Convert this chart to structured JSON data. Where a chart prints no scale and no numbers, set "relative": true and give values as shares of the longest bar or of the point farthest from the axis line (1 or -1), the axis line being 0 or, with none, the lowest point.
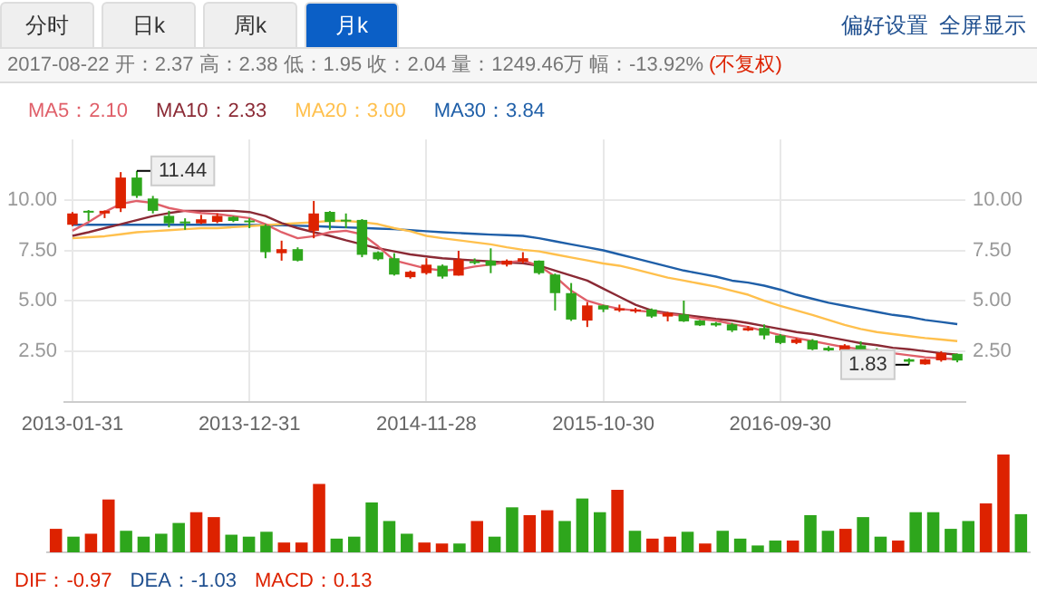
{
  "chart_data": [
    {
      "type": "candlestick",
      "subtitle": "2017-08-22 开：2.37 高：2.38 低：1.95 收：2.04 量：1249.46万 幅：-13.92%",
      "annotations": [
        "分时",
        "日k",
        "周k",
        "月k",
        "偏好设置",
        "全屏显示",
        "(不复权)",
        {
          "text": "11.44",
          "y": 11.44
        },
        {
          "text": "1.83",
          "y": 1.83
        }
      ],
      "categories": [
        "2013-01-31",
        null,
        null,
        null,
        null,
        null,
        null,
        null,
        null,
        null,
        null,
        "2013-12-31",
        null,
        null,
        null,
        null,
        null,
        null,
        null,
        null,
        null,
        null,
        "2014-11-28",
        null,
        null,
        null,
        null,
        null,
        null,
        null,
        null,
        null,
        null,
        "2015-10-30",
        null,
        null,
        null,
        null,
        null,
        null,
        null,
        null,
        null,
        null,
        "2016-09-30",
        null,
        null,
        null,
        null,
        null,
        null,
        null,
        null,
        null,
        null,
        null
      ],
      "ohlc": [
        [
          8.77,
          9.4,
          8.7,
          9.33
        ],
        [
          9.46,
          9.5,
          8.96,
          9.45
        ],
        [
          9.33,
          9.48,
          9.1,
          9.46
        ],
        [
          9.58,
          11.38,
          9.4,
          11.11
        ],
        [
          11.11,
          11.44,
          10.1,
          10.2
        ],
        [
          10.07,
          10.2,
          9.33,
          9.46
        ],
        [
          9.21,
          9.46,
          8.64,
          8.84
        ],
        [
          8.93,
          9.09,
          8.52,
          8.9
        ],
        [
          8.84,
          9.26,
          8.8,
          9.04
        ],
        [
          8.91,
          9.33,
          8.85,
          9.21
        ],
        [
          9.16,
          9.2,
          8.9,
          8.96
        ],
        [
          8.98,
          9.1,
          8.6,
          8.96
        ],
        [
          8.72,
          8.8,
          7.11,
          7.41
        ],
        [
          7.36,
          7.98,
          6.99,
          7.56
        ],
        [
          7.56,
          7.65,
          6.95,
          6.99
        ],
        [
          8.47,
          9.95,
          8.1,
          9.33
        ],
        [
          9.41,
          9.45,
          8.52,
          8.91
        ],
        [
          9.02,
          9.33,
          8.6,
          9.0
        ],
        [
          9.01,
          9.05,
          7.16,
          7.28
        ],
        [
          7.41,
          7.45,
          7.0,
          7.06
        ],
        [
          7.11,
          7.36,
          6.25,
          6.3
        ],
        [
          6.17,
          6.5,
          6.1,
          6.44
        ],
        [
          6.37,
          7.11,
          6.3,
          6.79
        ],
        [
          6.74,
          6.8,
          6.1,
          6.2
        ],
        [
          6.25,
          7.48,
          6.25,
          7.04
        ],
        [
          6.96,
          7.1,
          6.8,
          6.93
        ],
        [
          6.99,
          7.6,
          6.37,
          6.74
        ],
        [
          6.79,
          7.05,
          6.7,
          6.99
        ],
        [
          6.94,
          7.41,
          6.85,
          7.11
        ],
        [
          6.99,
          7.0,
          6.3,
          6.37
        ],
        [
          6.3,
          6.35,
          4.52,
          5.38
        ],
        [
          5.38,
          5.88,
          4.0,
          4.07
        ],
        [
          4.02,
          4.94,
          3.7,
          4.77
        ],
        [
          4.77,
          4.8,
          4.44,
          4.57
        ],
        [
          4.52,
          4.81,
          4.45,
          4.62
        ],
        [
          4.47,
          4.65,
          4.4,
          4.57
        ],
        [
          4.57,
          4.62,
          4.15,
          4.22
        ],
        [
          4.22,
          4.45,
          3.98,
          4.4
        ],
        [
          4.32,
          5.01,
          3.95,
          3.98
        ],
        [
          4.02,
          4.05,
          3.75,
          3.78
        ],
        [
          3.9,
          3.95,
          3.72,
          3.78
        ],
        [
          3.83,
          3.9,
          3.45,
          3.53
        ],
        [
          3.53,
          3.75,
          3.5,
          3.65
        ],
        [
          3.65,
          3.83,
          3.09,
          3.28
        ],
        [
          3.28,
          3.35,
          2.85,
          2.91
        ],
        [
          2.91,
          3.15,
          2.85,
          3.09
        ],
        [
          3.04,
          3.1,
          2.55,
          2.59
        ],
        [
          2.67,
          2.75,
          2.5,
          2.54
        ],
        [
          2.54,
          2.85,
          2.5,
          2.79
        ],
        [
          2.79,
          2.99,
          2.45,
          2.49
        ],
        [
          2.59,
          2.65,
          2.45,
          2.5
        ],
        null,
        [
          2.1,
          2.15,
          1.83,
          1.98
        ],
        [
          1.85,
          2.12,
          1.83,
          2.1
        ],
        [
          2.05,
          2.5,
          1.98,
          2.42
        ],
        [
          2.37,
          2.38,
          1.95,
          2.04
        ]
      ],
      "colors": [
        "#dd2200",
        "#2ea61c",
        "#dd2200",
        "#dd2200",
        "#2ea61c",
        "#2ea61c",
        "#2ea61c",
        "#2ea61c",
        "#dd2200",
        "#dd2200",
        "#2ea61c",
        "#2ea61c",
        "#2ea61c",
        "#dd2200",
        "#2ea61c",
        "#dd2200",
        "#2ea61c",
        "#2ea61c",
        "#2ea61c",
        "#2ea61c",
        "#2ea61c",
        "#dd2200",
        "#dd2200",
        "#2ea61c",
        "#dd2200",
        "#2ea61c",
        "#2ea61c",
        "#dd2200",
        "#dd2200",
        "#2ea61c",
        "#2ea61c",
        "#2ea61c",
        "#dd2200",
        "#2ea61c",
        "#dd2200",
        "#dd2200",
        "#2ea61c",
        "#dd2200",
        "#2ea61c",
        "#2ea61c",
        "#2ea61c",
        "#2ea61c",
        "#dd2200",
        "#2ea61c",
        "#2ea61c",
        "#dd2200",
        "#2ea61c",
        "#2ea61c",
        "#dd2200",
        "#2ea61c",
        "#2ea61c",
        null,
        "#2ea61c",
        "#dd2200",
        "#dd2200",
        "#2ea61c"
      ],
      "series": [
        {
          "type": "line",
          "name": "MA5：2.10",
          "color": "#e0606a",
          "values": [
            8.47,
            8.9,
            9.4,
            9.8,
            9.95,
            9.85,
            9.6,
            9.45,
            9.35,
            9.3,
            9.2,
            9.1,
            8.8,
            8.4,
            8.1,
            8.2,
            8.4,
            8.47,
            8.3,
            7.7,
            7.0,
            6.8,
            6.6,
            6.5,
            6.55,
            6.7,
            6.8,
            6.9,
            6.99,
            6.74,
            6.2,
            5.5,
            5.0,
            4.77,
            4.6,
            4.52,
            4.45,
            4.35,
            4.25,
            4.1,
            4.02,
            3.85,
            3.7,
            3.5,
            3.3,
            3.15,
            3.0,
            2.85,
            2.7,
            2.6,
            2.5,
            2.4,
            2.3,
            2.2,
            2.15,
            2.1
          ]
        },
        {
          "type": "line",
          "name": "MA10：2.33",
          "color": "#8b2a35",
          "values": [
            8.22,
            8.4,
            8.6,
            8.8,
            9.0,
            9.2,
            9.35,
            9.46,
            9.46,
            9.46,
            9.46,
            9.4,
            9.2,
            8.85,
            8.6,
            8.4,
            8.22,
            8.0,
            7.8,
            7.6,
            7.45,
            7.3,
            7.2,
            7.11,
            7.05,
            7.0,
            6.95,
            6.9,
            6.86,
            6.74,
            6.5,
            6.25,
            6.0,
            5.6,
            5.2,
            4.8,
            4.52,
            4.4,
            4.3,
            4.2,
            4.1,
            4.02,
            3.9,
            3.75,
            3.6,
            3.45,
            3.35,
            3.2,
            3.05,
            2.9,
            2.8,
            2.67,
            2.6,
            2.5,
            2.4,
            2.33
          ]
        },
        {
          "type": "line",
          "name": "MA20：3.00",
          "color": "#ffc04d",
          "values": [
            8.1,
            8.15,
            8.2,
            8.3,
            8.4,
            8.45,
            8.5,
            8.55,
            8.6,
            8.6,
            8.65,
            8.7,
            8.75,
            8.8,
            8.85,
            8.9,
            8.96,
            8.96,
            8.9,
            8.8,
            8.6,
            8.45,
            8.22,
            8.1,
            8.0,
            7.9,
            7.8,
            7.65,
            7.53,
            7.45,
            7.3,
            7.15,
            7.0,
            6.85,
            6.74,
            6.55,
            6.35,
            6.15,
            6.0,
            5.85,
            5.7,
            5.5,
            5.3,
            5.0,
            4.75,
            4.52,
            4.3,
            4.05,
            3.8,
            3.6,
            3.45,
            3.35,
            3.25,
            3.15,
            3.08,
            3.0
          ]
        },
        {
          "type": "line",
          "name": "MA30：3.84",
          "color": "#1f5fa8",
          "values": [
            8.77,
            8.77,
            8.77,
            8.77,
            8.77,
            8.77,
            8.77,
            8.77,
            8.77,
            8.77,
            8.77,
            8.76,
            8.75,
            8.74,
            8.72,
            8.7,
            8.67,
            8.64,
            8.61,
            8.58,
            8.55,
            8.5,
            8.45,
            8.4,
            8.36,
            8.32,
            8.28,
            8.25,
            8.22,
            8.1,
            7.95,
            7.8,
            7.65,
            7.5,
            7.3,
            7.1,
            6.9,
            6.7,
            6.5,
            6.35,
            6.2,
            6.0,
            5.9,
            5.75,
            5.55,
            5.3,
            5.1,
            4.9,
            4.75,
            4.6,
            4.45,
            4.3,
            4.2,
            4.05,
            3.95,
            3.84
          ]
        }
      ],
      "ylim": [
        0,
        13
      ],
      "yticks": [
        {
          "value": 2.5,
          "label": "2.50"
        },
        {
          "value": 5,
          "label": "5.00"
        },
        {
          "value": 7.5,
          "label": "7.50"
        },
        {
          "value": 10,
          "label": "10.00"
        }
      ],
      "y2lim": [
        0,
        13
      ],
      "y2ticks": [
        {
          "value": 2.5,
          "label": "2.50"
        },
        {
          "value": 5,
          "label": "5.00"
        },
        {
          "value": 7.5,
          "label": "7.50"
        },
        {
          "value": 10,
          "label": "10.00"
        }
      ],
      "grid": true,
      "legend": "top left",
      "marker": "none",
      "line_style": "solid"
    },
    {
      "type": "bar",
      "relative": true,
      "annotations": [
        "DIF：-0.97",
        "DEA：-1.03",
        "MACD：0.13"
      ],
      "categories": [
        null,
        null,
        null,
        null,
        null,
        null,
        null,
        null,
        null,
        null,
        null,
        null,
        null,
        null,
        null,
        null,
        null,
        null,
        null,
        null,
        null,
        null,
        null,
        null,
        null,
        null,
        null,
        null,
        null,
        null,
        null,
        null,
        null,
        null,
        null,
        null,
        null,
        null,
        null,
        null,
        null,
        null,
        null,
        null,
        null,
        null,
        null,
        null,
        null,
        null,
        null,
        null,
        null,
        null,
        null,
        null
      ],
      "values": [
        0.24,
        0.16,
        0.19,
        0.54,
        0.22,
        0.16,
        0.19,
        0.3,
        0.41,
        0.36,
        0.18,
        0.16,
        0.21,
        0.1,
        0.1,
        0.7,
        0.14,
        0.16,
        0.51,
        0.32,
        0.19,
        0.1,
        0.09,
        0.09,
        0.32,
        0.16,
        0.46,
        0.38,
        0.43,
        0.32,
        0.55,
        0.41,
        0.64,
        0.22,
        0.14,
        0.16,
        0.21,
        0.09,
        0.22,
        0.14,
        0.07,
        0.12,
        0.12,
        0.38,
        0.22,
        0.24,
        0.36,
        0.16,
        0.12,
        0.41,
        0.41,
        0.24,
        0.32,
        0.5,
        1,
        0.39
      ],
      "colors": [
        "#dd2200",
        "#2ea61c",
        "#dd2200",
        "#dd2200",
        "#2ea61c",
        "#2ea61c",
        "#2ea61c",
        "#2ea61c",
        "#dd2200",
        "#dd2200",
        "#2ea61c",
        "#2ea61c",
        "#2ea61c",
        "#dd2200",
        "#dd2200",
        "#dd2200",
        "#2ea61c",
        "#2ea61c",
        "#2ea61c",
        "#2ea61c",
        "#2ea61c",
        "#dd2200",
        "#dd2200",
        "#2ea61c",
        "#dd2200",
        "#2ea61c",
        "#2ea61c",
        "#dd2200",
        "#dd2200",
        "#2ea61c",
        "#2ea61c",
        "#2ea61c",
        "#dd2200",
        "#2ea61c",
        "#dd2200",
        "#dd2200",
        "#2ea61c",
        "#dd2200",
        "#2ea61c",
        "#2ea61c",
        "#2ea61c",
        "#2ea61c",
        "#dd2200",
        "#2ea61c",
        "#2ea61c",
        "#dd2200",
        "#2ea61c",
        "#2ea61c",
        "#dd2200",
        "#2ea61c",
        "#2ea61c",
        "#2ea61c",
        "#2ea61c",
        "#dd2200",
        "#dd2200",
        "#2ea61c"
      ]
    }
  ]
}
